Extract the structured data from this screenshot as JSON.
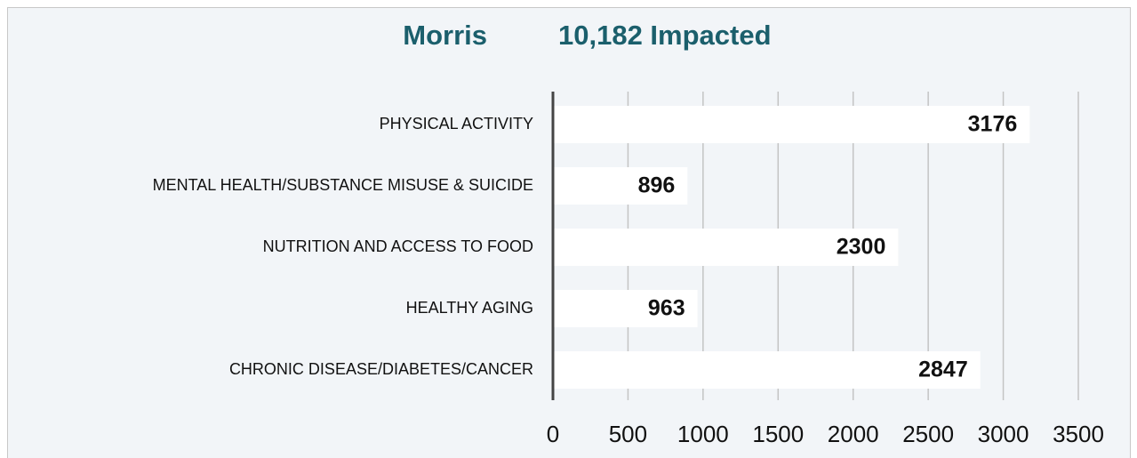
{
  "chart_data": {
    "type": "bar",
    "orientation": "horizontal",
    "title": "Morris",
    "subtitle": "10,182 Impacted",
    "categories": [
      "PHYSICAL ACTIVITY",
      "MENTAL HEALTH/SUBSTANCE MISUSE & SUICIDE",
      "NUTRITION AND ACCESS TO FOOD",
      "HEALTHY AGING",
      "CHRONIC DISEASE/DIABETES/CANCER"
    ],
    "values": [
      3176,
      896,
      2300,
      963,
      2847
    ],
    "color": "#ffffff",
    "xlim": [
      0,
      3500
    ],
    "xticks": [
      0,
      500,
      1000,
      1500,
      2000,
      2500,
      3000,
      3500
    ],
    "grid": true
  }
}
